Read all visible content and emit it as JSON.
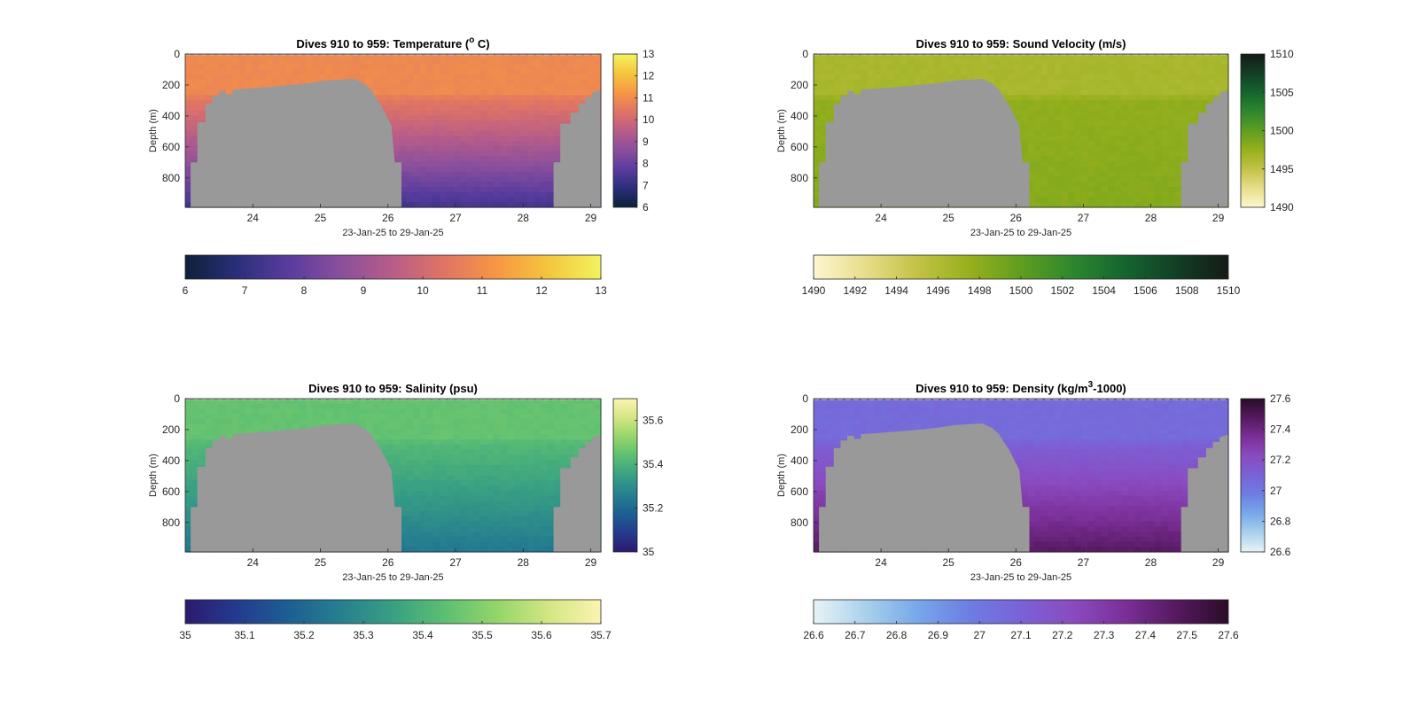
{
  "figure": {
    "background": "#ffffff",
    "land_color": "#999999"
  },
  "chart_data": [
    {
      "type": "heatmap",
      "title": "Dives 910 to 959: Temperature (",
      "title_sup": "o",
      "title_tail": " C)",
      "ylabel": "Depth (m)",
      "xlabel": "23-Jan-25 to 29-Jan-25",
      "x_range": [
        23.0,
        29.15
      ],
      "x_ticks": [
        24,
        25,
        26,
        27,
        28,
        29
      ],
      "y_range": [
        0,
        990
      ],
      "y_ticks": [
        0,
        200,
        400,
        600,
        800
      ],
      "colorbar_right": {
        "ticks": [
          "13",
          "12",
          "11",
          "10",
          "9",
          "8",
          "7",
          "6"
        ],
        "range": [
          6,
          13
        ]
      },
      "colorbar_bottom": {
        "ticks": [
          "6",
          "7",
          "8",
          "9",
          "10",
          "11",
          "12",
          "13"
        ],
        "range": [
          6,
          13
        ]
      },
      "colormap": [
        "#0c2038",
        "#2a2f7a",
        "#5a3c9e",
        "#8a4f9c",
        "#b85d88",
        "#e07464",
        "#f79744",
        "#f4c63d",
        "#f2f35e"
      ],
      "profile": {
        "surface": 10.9,
        "mid": 9.4,
        "deep": 7.3
      }
    },
    {
      "type": "heatmap",
      "title": "Dives 910 to 959: Sound Velocity (m/s)",
      "ylabel": "Depth (m)",
      "xlabel": "23-Jan-25 to 29-Jan-25",
      "x_range": [
        23.0,
        29.15
      ],
      "x_ticks": [
        24,
        25,
        26,
        27,
        28,
        29
      ],
      "y_range": [
        0,
        990
      ],
      "y_ticks": [
        0,
        200,
        400,
        600,
        800
      ],
      "colorbar_right": {
        "ticks": [
          "1510",
          "1505",
          "1500",
          "1495",
          "1490"
        ],
        "range": [
          1490,
          1510
        ]
      },
      "colorbar_bottom": {
        "ticks": [
          "1490",
          "1492",
          "1494",
          "1496",
          "1498",
          "1500",
          "1502",
          "1504",
          "1506",
          "1508",
          "1510"
        ],
        "range": [
          1490,
          1510
        ]
      },
      "colormap": [
        "#fdf6d0",
        "#e8dd8a",
        "#c3c247",
        "#97b01c",
        "#5f9e20",
        "#2e872e",
        "#14652f",
        "#123f24",
        "#141b15"
      ],
      "profile": {
        "surface": 1496.5,
        "mid": 1500.8,
        "deep": 1498.3
      }
    },
    {
      "type": "heatmap",
      "title": "Dives 910 to 959: Salinity (psu)",
      "ylabel": "Depth (m)",
      "xlabel": "23-Jan-25 to 29-Jan-25",
      "x_range": [
        23.0,
        29.15
      ],
      "x_ticks": [
        24,
        25,
        26,
        27,
        28,
        29
      ],
      "y_range": [
        0,
        990
      ],
      "y_ticks": [
        0,
        200,
        400,
        600,
        800
      ],
      "colorbar_right": {
        "ticks": [
          "35.6",
          "35.4",
          "35.2",
          "35"
        ],
        "range": [
          35,
          35.7
        ]
      },
      "colorbar_bottom": {
        "ticks": [
          "35",
          "35.1",
          "35.2",
          "35.3",
          "35.4",
          "35.5",
          "35.6",
          "35.7"
        ],
        "range": [
          35,
          35.7
        ]
      },
      "colormap": [
        "#2b1a6e",
        "#243b8f",
        "#1d5f93",
        "#26808f",
        "#38a083",
        "#5cbf72",
        "#94d56a",
        "#d4e683",
        "#fbf4b0"
      ],
      "profile": {
        "surface": 35.45,
        "mid": 35.33,
        "deep": 35.24
      }
    },
    {
      "type": "heatmap",
      "title": "Dives 910 to 959: Density (kg/m",
      "title_sup": "3",
      "title_tail": "-1000)",
      "ylabel": "Depth (m)",
      "xlabel": "23-Jan-25 to 29-Jan-25",
      "x_range": [
        23.0,
        29.15
      ],
      "x_ticks": [
        24,
        25,
        26,
        27,
        28,
        29
      ],
      "y_range": [
        0,
        990
      ],
      "y_ticks": [
        0,
        200,
        400,
        600,
        800
      ],
      "colorbar_right": {
        "ticks": [
          "27.6",
          "27.4",
          "27.2",
          "27",
          "26.8",
          "26.6"
        ],
        "range": [
          26.6,
          27.6
        ]
      },
      "colorbar_bottom": {
        "ticks": [
          "26.6",
          "26.7",
          "26.8",
          "26.9",
          "27",
          "27.1",
          "27.2",
          "27.3",
          "27.4",
          "27.5",
          "27.6"
        ],
        "range": [
          26.6,
          27.6
        ]
      },
      "colormap": [
        "#e8f3f7",
        "#a9d1ec",
        "#77a8ea",
        "#6d7ee2",
        "#7a62d6",
        "#8a4bc0",
        "#7b2f98",
        "#55195f",
        "#2a0c28"
      ],
      "profile": {
        "surface": 27.06,
        "mid": 27.25,
        "deep": 27.47
      }
    }
  ]
}
